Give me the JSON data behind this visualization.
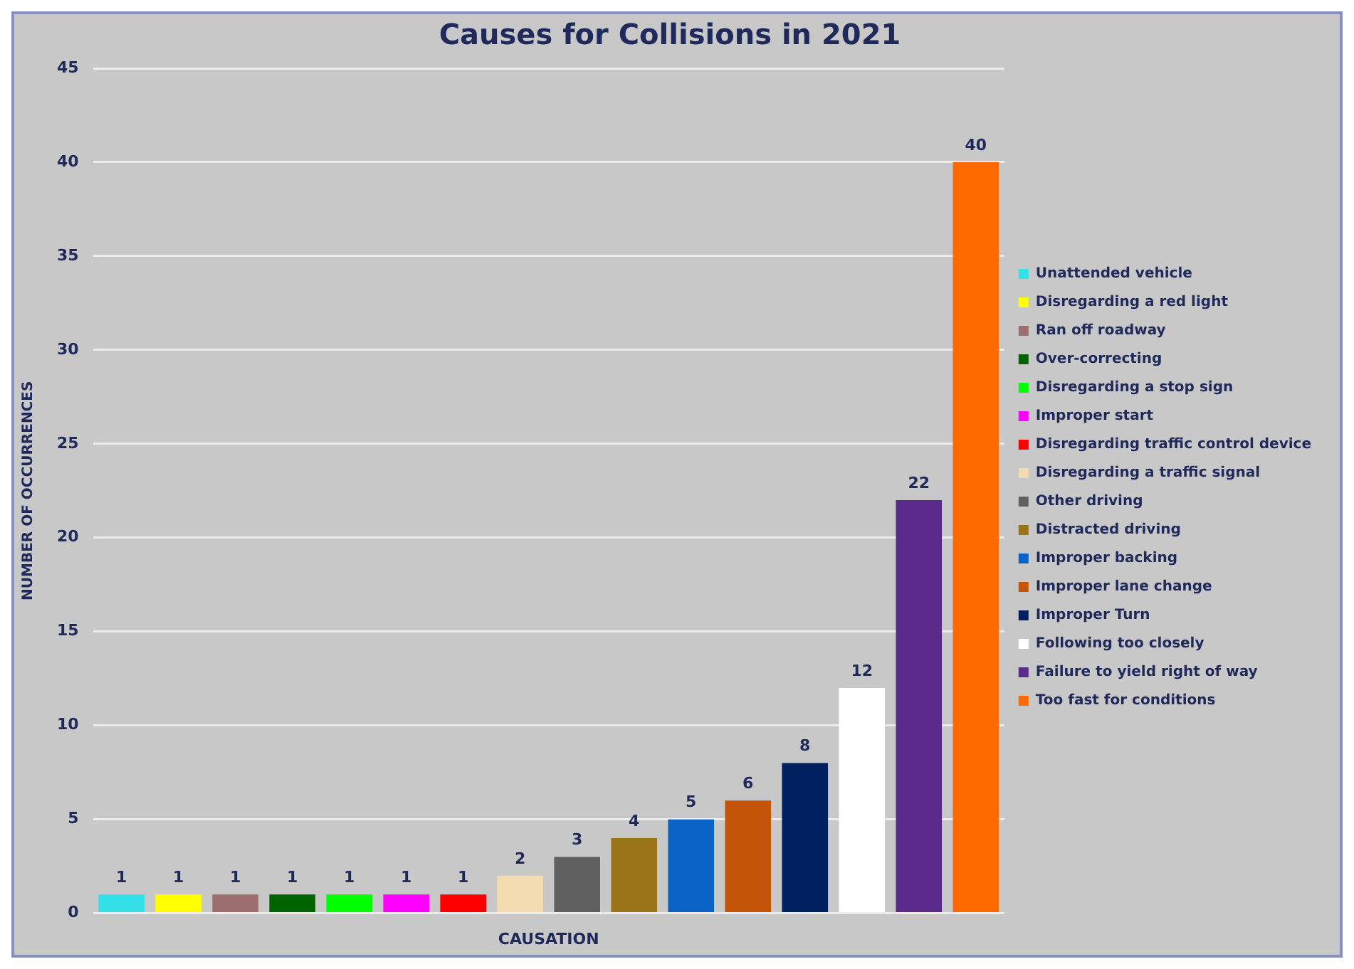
{
  "chart_data": {
    "type": "bar",
    "title": "Causes for Collisions in 2021",
    "xlabel": "CAUSATION",
    "ylabel": "NUMBER OF OCCURRENCES",
    "categories": [
      null,
      null,
      null,
      null,
      null,
      null,
      null,
      null,
      null,
      null,
      null,
      null,
      null,
      null,
      null,
      null
    ],
    "series": [
      {
        "name": "Unattended vehicle",
        "color": "#33e0e8",
        "values": [
          1,
          null,
          null,
          null,
          null,
          null,
          null,
          null,
          null,
          null,
          null,
          null,
          null,
          null,
          null,
          null
        ]
      },
      {
        "name": "Disregarding a red light",
        "color": "#ffff00",
        "values": [
          null,
          1,
          null,
          null,
          null,
          null,
          null,
          null,
          null,
          null,
          null,
          null,
          null,
          null,
          null,
          null
        ]
      },
      {
        "name": "Ran off roadway",
        "color": "#9c6e6e",
        "values": [
          null,
          null,
          1,
          null,
          null,
          null,
          null,
          null,
          null,
          null,
          null,
          null,
          null,
          null,
          null,
          null
        ]
      },
      {
        "name": "Over-correcting",
        "color": "#006400",
        "values": [
          null,
          null,
          null,
          1,
          null,
          null,
          null,
          null,
          null,
          null,
          null,
          null,
          null,
          null,
          null,
          null
        ]
      },
      {
        "name": "Disregarding a stop sign",
        "color": "#00ff00",
        "values": [
          null,
          null,
          null,
          null,
          1,
          null,
          null,
          null,
          null,
          null,
          null,
          null,
          null,
          null,
          null,
          null
        ]
      },
      {
        "name": "Improper start",
        "color": "#ff00ff",
        "values": [
          null,
          null,
          null,
          null,
          null,
          1,
          null,
          null,
          null,
          null,
          null,
          null,
          null,
          null,
          null,
          null
        ]
      },
      {
        "name": "Disregarding traffic control device",
        "color": "#ff0000",
        "values": [
          null,
          null,
          null,
          null,
          null,
          null,
          1,
          null,
          null,
          null,
          null,
          null,
          null,
          null,
          null,
          null
        ]
      },
      {
        "name": "Disregarding a traffic signal",
        "color": "#f2dcb0",
        "values": [
          null,
          null,
          null,
          null,
          null,
          null,
          null,
          2,
          null,
          null,
          null,
          null,
          null,
          null,
          null,
          null
        ]
      },
      {
        "name": "Other driving",
        "color": "#606060",
        "values": [
          null,
          null,
          null,
          null,
          null,
          null,
          null,
          null,
          3,
          null,
          null,
          null,
          null,
          null,
          null,
          null
        ]
      },
      {
        "name": "Distracted driving",
        "color": "#9c7418",
        "values": [
          null,
          null,
          null,
          null,
          null,
          null,
          null,
          null,
          null,
          4,
          null,
          null,
          null,
          null,
          null,
          null
        ]
      },
      {
        "name": "Improper backing",
        "color": "#0a64c8",
        "values": [
          null,
          null,
          null,
          null,
          null,
          null,
          null,
          null,
          null,
          null,
          5,
          null,
          null,
          null,
          null,
          null
        ]
      },
      {
        "name": "Improper lane change",
        "color": "#c45508",
        "values": [
          null,
          null,
          null,
          null,
          null,
          null,
          null,
          null,
          null,
          null,
          null,
          6,
          null,
          null,
          null,
          null
        ]
      },
      {
        "name": "Improper Turn",
        "color": "#002060",
        "values": [
          null,
          null,
          null,
          null,
          null,
          null,
          null,
          null,
          null,
          null,
          null,
          null,
          8,
          null,
          null,
          null
        ]
      },
      {
        "name": "Following too closely",
        "color": "#ffffff",
        "values": [
          null,
          null,
          null,
          null,
          null,
          null,
          null,
          null,
          null,
          null,
          null,
          null,
          null,
          12,
          null,
          null
        ]
      },
      {
        "name": "Failure to yield right of way",
        "color": "#5a2a8a",
        "values": [
          null,
          null,
          null,
          null,
          null,
          null,
          null,
          null,
          null,
          null,
          null,
          null,
          null,
          null,
          22,
          null
        ]
      },
      {
        "name": "Too fast for conditions",
        "color": "#ff6a00",
        "values": [
          null,
          null,
          null,
          null,
          null,
          null,
          null,
          null,
          null,
          null,
          null,
          null,
          null,
          null,
          null,
          40
        ]
      }
    ],
    "ylim": [
      0,
      45
    ],
    "yticks": [
      0,
      5,
      10,
      15,
      20,
      25,
      30,
      35,
      40,
      45
    ],
    "grid": "y",
    "legend": "right",
    "tick_labels": "y",
    "data_labels": true
  }
}
